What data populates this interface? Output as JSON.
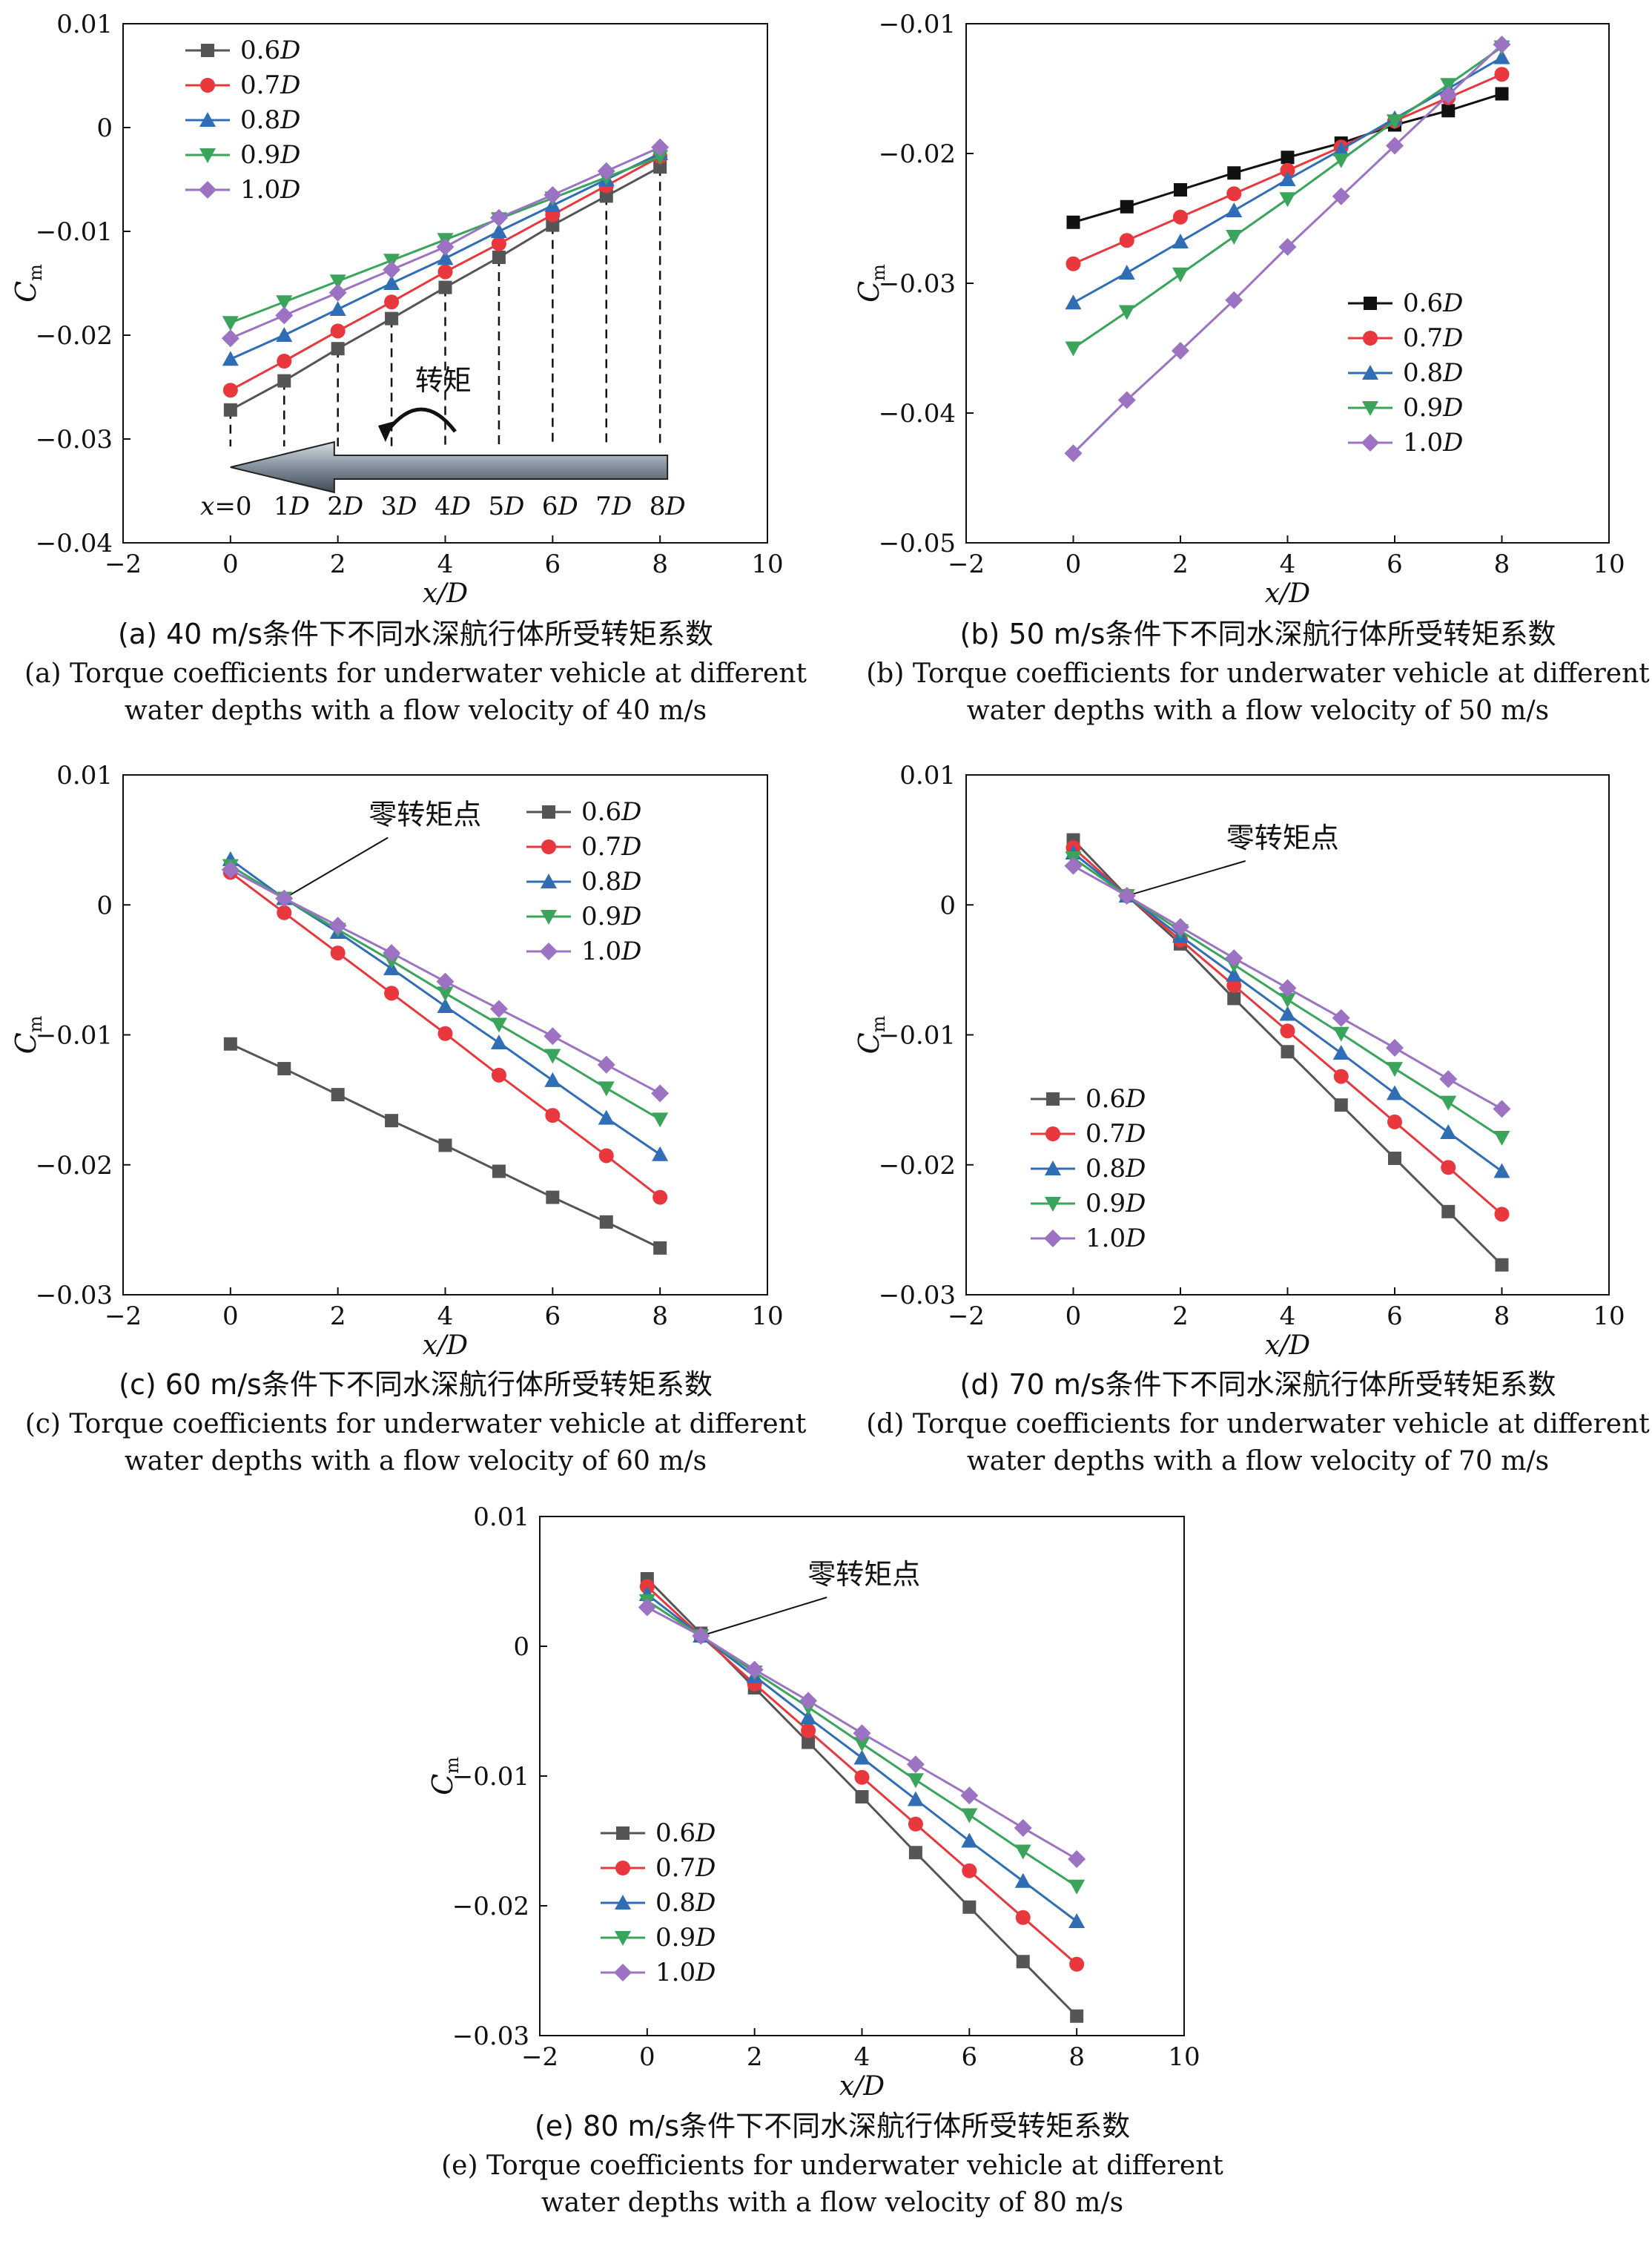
{
  "panels": [
    {
      "id": "a",
      "caption_cn": "(a) 40 m/s条件下不同水深航行体所受转矩系数",
      "caption_en1": "(a) Torque coefficients for underwater vehicle at different",
      "caption_en2": "water depths with a flow velocity of 40 m/s",
      "chart_data": {
        "type": "line",
        "xlabel": "x/D",
        "ylabel": "C_m",
        "xlim": [
          -2,
          10
        ],
        "ylim": [
          -0.04,
          0.01
        ],
        "xticks": [
          "−2",
          "0",
          "2",
          "4",
          "6",
          "8",
          "10"
        ],
        "yticks": [
          "0.01",
          "0",
          "−0.01",
          "−0.02",
          "−0.03",
          "−0.04"
        ],
        "x": [
          0,
          1,
          2,
          3,
          4,
          5,
          6,
          7,
          8
        ],
        "legend_position": "top-left",
        "series": [
          {
            "name": "0.6D",
            "color": "#555555",
            "marker": "square",
            "values": [
              -0.0272,
              -0.0244,
              -0.0213,
              -0.0184,
              -0.0154,
              -0.0125,
              -0.0094,
              -0.0066,
              -0.0038
            ]
          },
          {
            "name": "0.7D",
            "color": "#e8383d",
            "marker": "circle",
            "values": [
              -0.0253,
              -0.0225,
              -0.0196,
              -0.0168,
              -0.0139,
              -0.0112,
              -0.0084,
              -0.0056,
              -0.0028
            ]
          },
          {
            "name": "0.8D",
            "color": "#2f6db5",
            "marker": "triangle-up",
            "values": [
              -0.0223,
              -0.02,
              -0.0175,
              -0.015,
              -0.0126,
              -0.01,
              -0.0075,
              -0.005,
              -0.0025
            ]
          },
          {
            "name": "0.9D",
            "color": "#3aa55a",
            "marker": "triangle-down",
            "values": [
              -0.0188,
              -0.0168,
              -0.0148,
              -0.0128,
              -0.0108,
              -0.0088,
              -0.0068,
              -0.0048,
              -0.0028
            ]
          },
          {
            "name": "1.0D",
            "color": "#9b73c2",
            "marker": "diamond",
            "values": [
              -0.0203,
              -0.0181,
              -0.0159,
              -0.0137,
              -0.0115,
              -0.0087,
              -0.0065,
              -0.0042,
              -0.0019
            ]
          }
        ],
        "inset": {
          "torque_label": "转矩",
          "position_labels": [
            "x=0",
            "1D",
            "2D",
            "3D",
            "4D",
            "5D",
            "6D",
            "7D",
            "8D"
          ]
        }
      }
    },
    {
      "id": "b",
      "caption_cn": "(b) 50 m/s条件下不同水深航行体所受转矩系数",
      "caption_en1": "(b) Torque coefficients for underwater vehicle at different",
      "caption_en2": "water depths with a flow velocity of 50 m/s",
      "chart_data": {
        "type": "line",
        "xlabel": "x/D",
        "ylabel": "C_m",
        "xlim": [
          -2,
          10
        ],
        "ylim": [
          -0.05,
          -0.01
        ],
        "xticks": [
          "−2",
          "0",
          "2",
          "4",
          "6",
          "8",
          "10"
        ],
        "yticks": [
          "−0.01",
          "−0.02",
          "−0.03",
          "−0.04",
          "−0.05"
        ],
        "x": [
          0,
          1,
          2,
          3,
          4,
          5,
          6,
          7,
          8
        ],
        "legend_position": "right",
        "series": [
          {
            "name": "0.6D",
            "color": "#111111",
            "marker": "square",
            "values": [
              -0.0253,
              -0.0241,
              -0.0228,
              -0.0215,
              -0.0203,
              -0.0192,
              -0.0178,
              -0.0167,
              -0.0154
            ]
          },
          {
            "name": "0.7D",
            "color": "#e8383d",
            "marker": "circle",
            "values": [
              -0.0285,
              -0.0267,
              -0.0249,
              -0.0231,
              -0.0213,
              -0.0195,
              -0.0175,
              -0.0157,
              -0.0139
            ]
          },
          {
            "name": "0.8D",
            "color": "#2f6db5",
            "marker": "triangle-up",
            "values": [
              -0.0315,
              -0.0292,
              -0.0268,
              -0.0244,
              -0.022,
              -0.0197,
              -0.0173,
              -0.015,
              -0.0126
            ]
          },
          {
            "name": "0.9D",
            "color": "#3aa55a",
            "marker": "triangle-down",
            "values": [
              -0.035,
              -0.0322,
              -0.0293,
              -0.0264,
              -0.0235,
              -0.0205,
              -0.0175,
              -0.0147,
              -0.0118
            ]
          },
          {
            "name": "1.0D",
            "color": "#9b73c2",
            "marker": "diamond",
            "values": [
              -0.0431,
              -0.039,
              -0.0352,
              -0.0313,
              -0.0272,
              -0.0233,
              -0.0194,
              -0.0155,
              -0.0116
            ]
          }
        ]
      }
    },
    {
      "id": "c",
      "caption_cn": "(c) 60 m/s条件下不同水深航行体所受转矩系数",
      "caption_en1": "(c) Torque coefficients for underwater vehicle at different",
      "caption_en2": "water depths with a flow velocity of 60 m/s",
      "chart_data": {
        "type": "line",
        "xlabel": "x/D",
        "ylabel": "C_m",
        "xlim": [
          -2,
          10
        ],
        "ylim": [
          -0.03,
          0.01
        ],
        "xticks": [
          "−2",
          "0",
          "2",
          "4",
          "6",
          "8",
          "10"
        ],
        "yticks": [
          "0.01",
          "0",
          "−0.01",
          "−0.02",
          "−0.03"
        ],
        "x": [
          0,
          1,
          2,
          3,
          4,
          5,
          6,
          7,
          8
        ],
        "legend_position": "top-right",
        "annotation": "零转矩点",
        "annotation_point": [
          1,
          0.0005
        ],
        "series": [
          {
            "name": "0.6D",
            "color": "#555555",
            "marker": "square",
            "values": [
              -0.0107,
              -0.0126,
              -0.0146,
              -0.0166,
              -0.0185,
              -0.0205,
              -0.0225,
              -0.0244,
              -0.0264
            ]
          },
          {
            "name": "0.7D",
            "color": "#e8383d",
            "marker": "circle",
            "values": [
              0.0025,
              -0.0006,
              -0.0037,
              -0.0068,
              -0.0099,
              -0.0131,
              -0.0162,
              -0.0193,
              -0.0225
            ]
          },
          {
            "name": "0.8D",
            "color": "#2f6db5",
            "marker": "triangle-up",
            "values": [
              0.0035,
              0.0005,
              -0.0021,
              -0.0049,
              -0.0078,
              -0.0106,
              -0.0135,
              -0.0164,
              -0.0192
            ]
          },
          {
            "name": "0.9D",
            "color": "#3aa55a",
            "marker": "triangle-down",
            "values": [
              0.003,
              0.0005,
              -0.0019,
              -0.0043,
              -0.0068,
              -0.0092,
              -0.0116,
              -0.0141,
              -0.0165
            ]
          },
          {
            "name": "1.0D",
            "color": "#9b73c2",
            "marker": "diamond",
            "values": [
              0.0027,
              0.0005,
              -0.0016,
              -0.0037,
              -0.0059,
              -0.008,
              -0.0101,
              -0.0123,
              -0.0145
            ]
          }
        ]
      }
    },
    {
      "id": "d",
      "caption_cn": "(d) 70 m/s条件下不同水深航行体所受转矩系数",
      "caption_en1": "(d) Torque coefficients for underwater vehicle at different",
      "caption_en2": "water depths with a flow velocity of 70 m/s",
      "chart_data": {
        "type": "line",
        "xlabel": "x/D",
        "ylabel": "C_m",
        "xlim": [
          -2,
          10
        ],
        "ylim": [
          -0.03,
          0.01
        ],
        "xticks": [
          "−2",
          "0",
          "2",
          "4",
          "6",
          "8",
          "10"
        ],
        "yticks": [
          "0.01",
          "0",
          "−0.01",
          "−0.02",
          "−0.03"
        ],
        "x": [
          0,
          1,
          2,
          3,
          4,
          5,
          6,
          7,
          8
        ],
        "legend_position": "bottom-left",
        "annotation": "零转矩点",
        "annotation_point": [
          1,
          0.0007
        ],
        "series": [
          {
            "name": "0.6D",
            "color": "#555555",
            "marker": "square",
            "values": [
              0.005,
              0.0007,
              -0.003,
              -0.0072,
              -0.0113,
              -0.0154,
              -0.0195,
              -0.0236,
              -0.0277
            ]
          },
          {
            "name": "0.7D",
            "color": "#e8383d",
            "marker": "circle",
            "values": [
              0.0044,
              0.0007,
              -0.0027,
              -0.0062,
              -0.0097,
              -0.0132,
              -0.0167,
              -0.0202,
              -0.0238
            ]
          },
          {
            "name": "0.8D",
            "color": "#2f6db5",
            "marker": "triangle-up",
            "values": [
              0.004,
              0.0007,
              -0.0024,
              -0.0054,
              -0.0084,
              -0.0114,
              -0.0145,
              -0.0175,
              -0.0205
            ]
          },
          {
            "name": "0.9D",
            "color": "#3aa55a",
            "marker": "triangle-down",
            "values": [
              0.0036,
              0.0007,
              -0.002,
              -0.0046,
              -0.0073,
              -0.0099,
              -0.0126,
              -0.0152,
              -0.0179
            ]
          },
          {
            "name": "1.0D",
            "color": "#9b73c2",
            "marker": "diamond",
            "values": [
              0.003,
              0.0007,
              -0.0017,
              -0.0041,
              -0.0064,
              -0.0087,
              -0.011,
              -0.0134,
              -0.0157
            ]
          }
        ]
      }
    },
    {
      "id": "e",
      "caption_cn": "(e) 80 m/s条件下不同水深航行体所受转矩系数",
      "caption_en1": "(e) Torque coefficients for underwater vehicle at different",
      "caption_en2": "water depths with a flow velocity of 80 m/s",
      "chart_data": {
        "type": "line",
        "xlabel": "x/D",
        "ylabel": "C_m",
        "xlim": [
          -2,
          10
        ],
        "ylim": [
          -0.03,
          0.01
        ],
        "xticks": [
          "−2",
          "0",
          "2",
          "4",
          "6",
          "8",
          "10"
        ],
        "yticks": [
          "0.01",
          "0",
          "−0.01",
          "−0.02",
          "−0.03"
        ],
        "x": [
          0,
          1,
          2,
          3,
          4,
          5,
          6,
          7,
          8
        ],
        "legend_position": "bottom-left",
        "annotation": "零转矩点",
        "annotation_point": [
          1,
          0.0008
        ],
        "series": [
          {
            "name": "0.6D",
            "color": "#555555",
            "marker": "square",
            "values": [
              0.0052,
              0.001,
              -0.0032,
              -0.0074,
              -0.0116,
              -0.0159,
              -0.0201,
              -0.0243,
              -0.0285
            ]
          },
          {
            "name": "0.7D",
            "color": "#e8383d",
            "marker": "circle",
            "values": [
              0.0046,
              0.0008,
              -0.0029,
              -0.0065,
              -0.0101,
              -0.0137,
              -0.0173,
              -0.0209,
              -0.0245
            ]
          },
          {
            "name": "0.8D",
            "color": "#2f6db5",
            "marker": "triangle-up",
            "values": [
              0.004,
              0.0008,
              -0.0023,
              -0.0055,
              -0.0086,
              -0.0118,
              -0.015,
              -0.0181,
              -0.0212
            ]
          },
          {
            "name": "0.9D",
            "color": "#3aa55a",
            "marker": "triangle-down",
            "values": [
              0.0035,
              0.0008,
              -0.002,
              -0.0047,
              -0.0075,
              -0.0103,
              -0.013,
              -0.0158,
              -0.0185
            ]
          },
          {
            "name": "1.0D",
            "color": "#9b73c2",
            "marker": "diamond",
            "values": [
              0.003,
              0.0008,
              -0.0018,
              -0.0042,
              -0.0067,
              -0.0091,
              -0.0115,
              -0.014,
              -0.0164
            ]
          }
        ]
      }
    }
  ]
}
